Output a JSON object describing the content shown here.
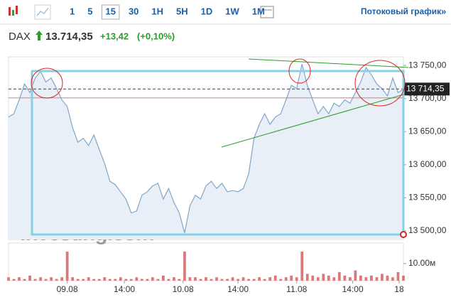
{
  "toolbar": {
    "intervals": [
      "1",
      "5",
      "15",
      "30",
      "1H",
      "5H",
      "1D",
      "1W",
      "1M"
    ],
    "selected": "15",
    "stream": "Потоковый график",
    "more": "»"
  },
  "header": {
    "symbol": "DAX",
    "price": "13.714,35",
    "change": "+13,42",
    "change_pct": "(+0,10%)"
  },
  "chart_data": {
    "type": "line",
    "watermark": "Investing.com",
    "series": [
      {
        "name": "DAX",
        "color": "#7fa7cc",
        "fill": "#e8eff7",
        "values": [
          13672,
          13677,
          13698,
          13722,
          13709,
          13731,
          13741,
          13725,
          13731,
          13715,
          13698,
          13688,
          13656,
          13634,
          13640,
          13629,
          13645,
          13623,
          13602,
          13575,
          13570,
          13559,
          13548,
          13527,
          13530,
          13554,
          13559,
          13568,
          13572,
          13548,
          13564,
          13543,
          13527,
          13497,
          13538,
          13554,
          13548,
          13568,
          13575,
          13564,
          13572,
          13559,
          13561,
          13559,
          13564,
          13586,
          13640,
          13661,
          13677,
          13661,
          13672,
          13677,
          13698,
          13720,
          13715,
          13752,
          13720,
          13698,
          13677,
          13688,
          13677,
          13693,
          13688,
          13698,
          13693,
          13709,
          13725,
          13747,
          13736,
          13722,
          13715,
          13704,
          13731,
          13709,
          13714
        ]
      }
    ],
    "volume": {
      "color": "#d9797a",
      "values": [
        2,
        1,
        2,
        1,
        3,
        1,
        2,
        1,
        2,
        1,
        2,
        17,
        2,
        1,
        1,
        2,
        1,
        1,
        2,
        1,
        1,
        2,
        1,
        1,
        2,
        1,
        1,
        2,
        1,
        3,
        1,
        2,
        1,
        17,
        2,
        2,
        1,
        2,
        1,
        2,
        1,
        1,
        2,
        1,
        2,
        1,
        1,
        2,
        1,
        2,
        3,
        1,
        2,
        3,
        2,
        17,
        4,
        3,
        2,
        4,
        3,
        2,
        5,
        3,
        2,
        6,
        3,
        2,
        3,
        2,
        4,
        3,
        2,
        5,
        3
      ],
      "ylim": [
        0,
        22
      ],
      "yticks": [
        {
          "value": 10,
          "label": "10.00м"
        }
      ]
    },
    "xlim": [
      0,
      74
    ],
    "xticks": [
      {
        "value": 11,
        "label": "09.08"
      },
      {
        "value": 21.7,
        "label": "14:00"
      },
      {
        "value": 32.7,
        "label": "10.08"
      },
      {
        "value": 43,
        "label": "14:00"
      },
      {
        "value": 54,
        "label": "11.08"
      },
      {
        "value": 64.5,
        "label": "14:00"
      },
      {
        "value": 73.2,
        "label": "18"
      }
    ],
    "ylim": [
      13487,
      13763
    ],
    "yticks": [
      {
        "value": 13500,
        "label": "13 500,00"
      },
      {
        "value": 13550,
        "label": "13 550,00"
      },
      {
        "value": 13600,
        "label": "13 600,00"
      },
      {
        "value": 13650,
        "label": "13 650,00"
      },
      {
        "value": 13700,
        "label": "13 700,00"
      },
      {
        "value": 13750,
        "label": "13 750,00"
      }
    ],
    "last_price": {
      "value": 13714.35,
      "label": "13 714,35"
    },
    "prev_close": 13700.93
  }
}
